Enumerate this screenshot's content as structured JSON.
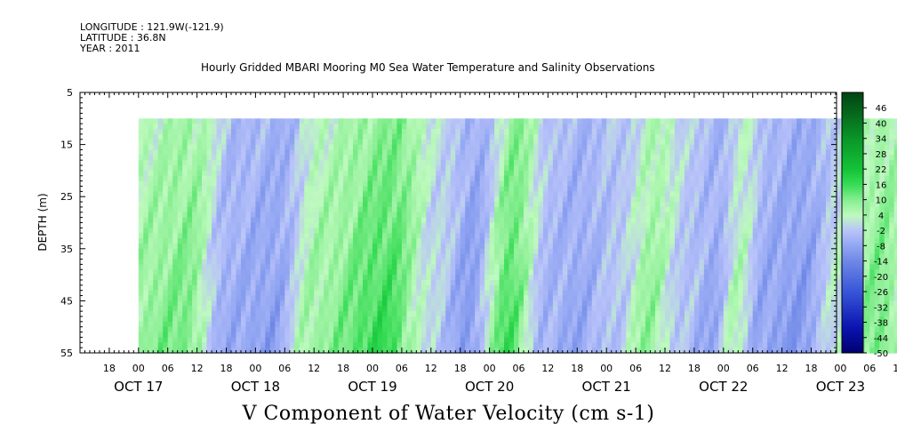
{
  "header": {
    "longitude": "LONGITUDE : 121.9W(-121.9)",
    "latitude": "LATITUDE : 36.8N",
    "year": "YEAR : 2011"
  },
  "title": "Hourly Gridded MBARI Mooring M0 Sea Water Temperature and Salinity Observations",
  "subtitle": "V Component of Water Velocity (cm s-1)",
  "chart_data": {
    "type": "heatmap",
    "title": "Hourly Gridded MBARI Mooring M0 Sea Water Temperature and Salinity Observations",
    "xlabel": "",
    "ylabel": "DEPTH (m)",
    "colorbar_label": "V Component of Water Velocity (cm s-1)",
    "x_axis": {
      "start": "OCT 16 12:00",
      "end": "OCT 24 00:00",
      "data_start": "OCT 17 00:00",
      "data_end": "OCT 23 23:00",
      "hour_ticks": [
        "18",
        "00",
        "06",
        "12",
        "18",
        "00",
        "06",
        "12",
        "18",
        "00",
        "06",
        "12",
        "18",
        "00",
        "06",
        "12",
        "18",
        "00",
        "06",
        "12",
        "18",
        "00",
        "06",
        "12",
        "18",
        "00",
        "06",
        "12",
        "18"
      ],
      "day_labels": [
        "OCT 17",
        "OCT 18",
        "OCT 19",
        "OCT 20",
        "OCT 21",
        "OCT 22",
        "OCT 23"
      ]
    },
    "y_axis": {
      "ylim": [
        5,
        55
      ],
      "inverted": true,
      "ticks": [
        5,
        15,
        25,
        35,
        45,
        55
      ],
      "data_top": 10,
      "data_bottom": 55
    },
    "colorbar": {
      "levels": [
        -50,
        -44,
        -38,
        -32,
        -26,
        -20,
        -14,
        -8,
        -2,
        4,
        10,
        16,
        22,
        28,
        34,
        40,
        46
      ],
      "tick_labels": [
        "46",
        "40",
        "34",
        "28",
        "22",
        "16",
        "10",
        "4",
        "-2",
        "-8",
        "-14",
        "-20",
        "-26",
        "-32",
        "-38",
        "-44",
        "-50"
      ],
      "range": [
        -50,
        52
      ]
    },
    "field_pattern": {
      "description": "alternating bands of northward (positive) and southward (negative) flow",
      "phases": [
        {
          "time": "OCT 17 00",
          "value": 6
        },
        {
          "time": "OCT 17 12",
          "value": 9
        },
        {
          "time": "OCT 17 20",
          "value": -5
        },
        {
          "time": "OCT 18 06",
          "value": -7
        },
        {
          "time": "OCT 18 14",
          "value": 6
        },
        {
          "time": "OCT 19 05",
          "value": 13
        },
        {
          "time": "OCT 19 15",
          "value": 0
        },
        {
          "time": "OCT 19 22",
          "value": -8
        },
        {
          "time": "OCT 20 06",
          "value": 12
        },
        {
          "time": "OCT 20 14",
          "value": -4
        },
        {
          "time": "OCT 20 20",
          "value": -6
        },
        {
          "time": "OCT 21 04",
          "value": -2
        },
        {
          "time": "OCT 21 11",
          "value": 7
        },
        {
          "time": "OCT 21 18",
          "value": -2
        },
        {
          "time": "OCT 22 00",
          "value": -6
        },
        {
          "time": "OCT 22 05",
          "value": 4
        },
        {
          "time": "OCT 22 10",
          "value": -6
        },
        {
          "time": "OCT 22 18",
          "value": -8
        },
        {
          "time": "OCT 23 02",
          "value": 2
        },
        {
          "time": "OCT 23 10",
          "value": 9
        },
        {
          "time": "OCT 23 18",
          "value": 0
        }
      ]
    },
    "grid": false,
    "legend": "colorbar-right"
  }
}
